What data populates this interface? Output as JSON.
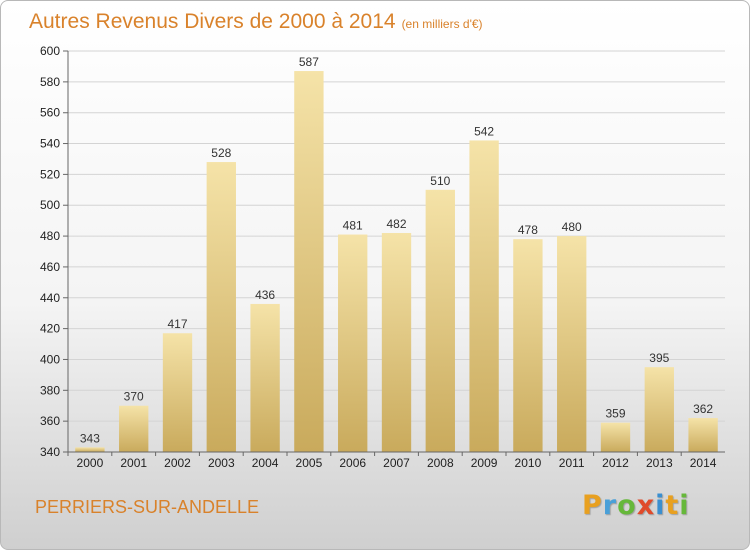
{
  "header": {
    "title": "Autres Revenus Divers de 2000 à 2014",
    "unit": "(en milliers d'€)"
  },
  "footer": {
    "commune": "PERRIERS-SUR-ANDELLE"
  },
  "logo": {
    "letters": [
      "P",
      "r",
      "o",
      "x",
      "i",
      "t",
      "i"
    ],
    "colors": [
      "#e8a020",
      "#4aa0d8",
      "#66b83a",
      "#e04a2a",
      "#3a8fd0",
      "#e8a020",
      "#66b83a"
    ]
  },
  "chart_data": {
    "type": "bar",
    "title": "Autres Revenus Divers de 2000 à 2014",
    "ylabel": "",
    "xlabel": "",
    "categories": [
      "2000",
      "2001",
      "2002",
      "2003",
      "2004",
      "2005",
      "2006",
      "2007",
      "2008",
      "2009",
      "2010",
      "2011",
      "2012",
      "2013",
      "2014"
    ],
    "values": [
      343,
      370,
      417,
      528,
      436,
      587,
      481,
      482,
      510,
      542,
      478,
      480,
      359,
      395,
      362
    ],
    "ylim": [
      340,
      600
    ],
    "yticks": [
      340,
      360,
      380,
      400,
      420,
      440,
      460,
      480,
      500,
      520,
      540,
      560,
      580,
      600
    ],
    "grid": true,
    "bar_color_top": "#f5e3a8",
    "bar_color_bottom": "#c9aa5c"
  }
}
